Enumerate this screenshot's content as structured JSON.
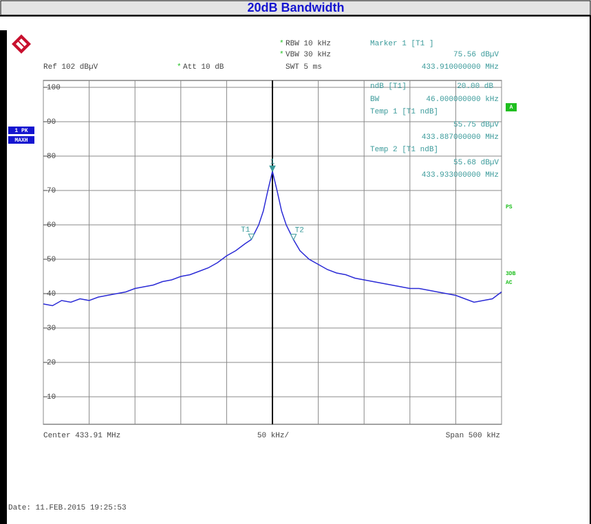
{
  "chart_data": {
    "type": "line",
    "title": "20dB Bandwidth",
    "color": "#2a2ad6",
    "marker_color": "#3a9a9a",
    "grid": true,
    "xlim": [
      433.66,
      434.16
    ],
    "xticks": [
      433.66,
      433.71,
      433.76,
      433.81,
      433.86,
      433.91,
      433.96,
      434.01,
      434.06,
      434.11,
      434.16
    ],
    "ylim": [
      2,
      102
    ],
    "yticks": [
      10,
      20,
      30,
      40,
      50,
      60,
      70,
      80,
      90,
      100
    ],
    "x": [
      433.66,
      433.67,
      433.68,
      433.69,
      433.7,
      433.71,
      433.72,
      433.73,
      433.74,
      433.75,
      433.76,
      433.77,
      433.78,
      433.79,
      433.8,
      433.81,
      433.82,
      433.83,
      433.84,
      433.85,
      433.86,
      433.87,
      433.88,
      433.887,
      433.895,
      433.9,
      433.905,
      433.91,
      433.915,
      433.92,
      433.925,
      433.933,
      433.94,
      433.95,
      433.96,
      433.97,
      433.98,
      433.99,
      434.0,
      434.01,
      434.02,
      434.03,
      434.04,
      434.05,
      434.06,
      434.07,
      434.08,
      434.09,
      434.1,
      434.11,
      434.12,
      434.13,
      434.14,
      434.15,
      434.16
    ],
    "values": [
      37,
      36.5,
      38,
      37.5,
      38.5,
      38,
      39,
      39.5,
      40,
      40.5,
      41.5,
      42,
      42.5,
      43.5,
      44,
      45,
      45.5,
      46.5,
      47.5,
      49,
      51,
      52.5,
      54.5,
      55.75,
      60,
      64,
      70,
      75.56,
      70,
      64,
      60,
      55.68,
      52.5,
      50,
      48.5,
      47,
      46,
      45.5,
      44.5,
      44,
      43.5,
      43,
      42.5,
      42,
      41.5,
      41.5,
      41,
      40.5,
      40,
      39.5,
      38.5,
      37.5,
      38,
      38.5,
      40.5
    ],
    "markers": [
      {
        "label": "1",
        "x": 433.91,
        "y": 75.56
      },
      {
        "label": "T1",
        "x": 433.887,
        "y": 55.75
      },
      {
        "label": "T2",
        "x": 433.933,
        "y": 55.68
      }
    ],
    "annotations": {
      "flag": "*",
      "rbw": "RBW 10 kHz",
      "vbw": "VBW 30 kHz",
      "swt": "SWT 5 ms",
      "ref": "Ref 102 dBµV",
      "att": "Att 10 dB",
      "marker1": "Marker 1 [T1 ]",
      "marker1_level": "75.56 dBµV",
      "marker1_freq": "433.910000000 MHz",
      "ndb": "ndB [T1]",
      "ndb_value": "20.00 dB",
      "bw": "BW",
      "bw_value": "46.000000000 kHz",
      "temp1": "Temp 1 [T1 ndB]",
      "temp1_level": "55.75 dBµV",
      "temp1_freq": "433.887000000 MHz",
      "temp2": "Temp 2 [T1 ndB]",
      "temp2_level": "55.68 dBµV",
      "temp2_freq": "433.933000000 MHz",
      "trace1": "1 PK",
      "trace2": "MAXH",
      "side_a": "A",
      "side_ps": "PS",
      "side_3db": "3DB",
      "side_ac": "AC",
      "center": "Center 433.91 MHz",
      "div": "50 kHz/",
      "span": "Span 500 kHz",
      "date": "Date: 11.FEB.2015 19:25:53"
    }
  }
}
